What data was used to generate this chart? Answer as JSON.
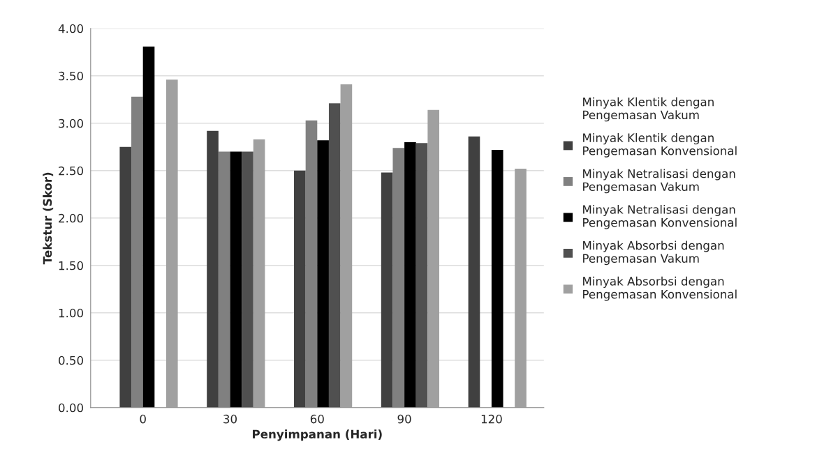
{
  "chart_data": {
    "type": "bar",
    "xlabel": "Penyimpanan (Hari)",
    "ylabel": "Tekstur (Skor)",
    "categories": [
      "0",
      "30",
      "60",
      "90",
      "120"
    ],
    "series": [
      {
        "name": "Minyak Klentik dengan Pengemasan Vakum",
        "values": [
          null,
          null,
          null,
          null,
          null
        ]
      },
      {
        "name": "Minyak Klentik dengan Pengemasan Konvensional",
        "color": "#404040",
        "values": [
          2.75,
          2.92,
          2.5,
          2.48,
          2.86
        ]
      },
      {
        "name": "Minyak Netralisasi dengan Pengemasan Vakum",
        "color": "#808080",
        "values": [
          3.28,
          2.7,
          3.03,
          2.74,
          null
        ]
      },
      {
        "name": "Minyak Netralisasi dengan Pengemasan Konvensional",
        "color": "#000000",
        "values": [
          3.81,
          2.7,
          2.82,
          2.8,
          2.72
        ]
      },
      {
        "name": "Minyak Absorbsi dengan Pengemasan Vakum",
        "color": "#505050",
        "values": [
          null,
          2.7,
          3.21,
          2.79,
          null
        ]
      },
      {
        "name": "Minyak Absorbsi dengan Pengemasan Konvensional",
        "color": "#a0a0a0",
        "values": [
          3.46,
          2.83,
          3.41,
          3.14,
          2.52
        ]
      }
    ],
    "ylim": [
      0,
      4
    ],
    "yticks": [
      {
        "value": 0,
        "label": "0.00"
      },
      {
        "value": 0.5,
        "label": "0.50"
      },
      {
        "value": 1,
        "label": "1.00"
      },
      {
        "value": 1.5,
        "label": "1.50"
      },
      {
        "value": 2,
        "label": "2.00"
      },
      {
        "value": 2.5,
        "label": "2.50"
      },
      {
        "value": 3,
        "label": "3.00"
      },
      {
        "value": 3.5,
        "label": "3.50"
      },
      {
        "value": 4,
        "label": "4.00"
      }
    ],
    "grid": "y",
    "legend": "right"
  }
}
